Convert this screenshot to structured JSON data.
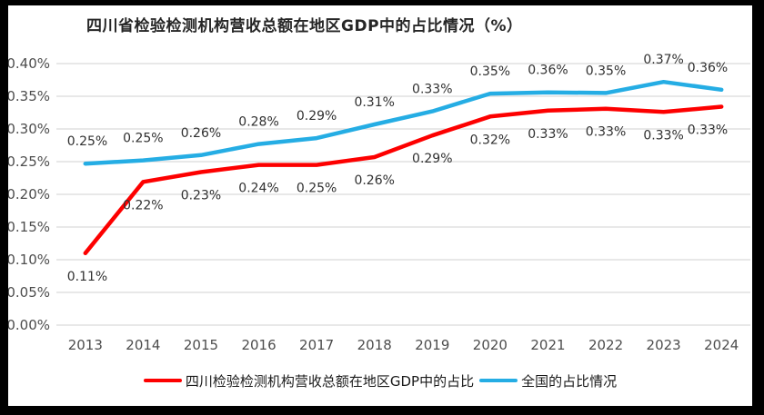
{
  "window": {
    "frame_color": "#000000",
    "canvas_background": "#ffffff"
  },
  "chart_data": {
    "type": "line",
    "title": "四川省检验检测机构营收总额在地区GDP中的占比情况（%）",
    "categories": [
      "2013",
      "2014",
      "2015",
      "2016",
      "2017",
      "2018",
      "2019",
      "2020",
      "2021",
      "2022",
      "2023",
      "2024"
    ],
    "series": [
      {
        "name": "四川检验检测机构营收总额在地区GDP中的占比",
        "color": "#fd0000",
        "values": [
          0.11,
          0.22,
          0.23,
          0.24,
          0.25,
          0.26,
          0.29,
          0.32,
          0.33,
          0.33,
          0.33,
          0.33
        ],
        "labels": [
          "0.11%",
          "0.22%",
          "0.23%",
          "0.24%",
          "0.25%",
          "0.26%",
          "0.29%",
          "0.32%",
          "0.33%",
          "0.33%",
          "0.33%",
          "0.33%"
        ],
        "plot_values": [
          0.11,
          0.219,
          0.234,
          0.245,
          0.245,
          0.257,
          0.29,
          0.319,
          0.328,
          0.331,
          0.326,
          0.334
        ],
        "label_position": "below"
      },
      {
        "name": "全国的占比情况",
        "color": "#25ade4",
        "values": [
          0.25,
          0.25,
          0.26,
          0.28,
          0.29,
          0.31,
          0.33,
          0.35,
          0.36,
          0.35,
          0.37,
          0.36
        ],
        "labels": [
          "0.25%",
          "0.25%",
          "0.26%",
          "0.28%",
          "0.29%",
          "0.31%",
          "0.33%",
          "0.35%",
          "0.36%",
          "0.35%",
          "0.37%",
          "0.36%"
        ],
        "plot_values": [
          0.247,
          0.252,
          0.26,
          0.277,
          0.286,
          0.307,
          0.327,
          0.354,
          0.356,
          0.355,
          0.372,
          0.36
        ],
        "label_position": "above"
      }
    ],
    "y_axis": {
      "min": 0,
      "max": 0.4,
      "step": 0.05,
      "ticks": [
        "0.00%",
        "0.05%",
        "0.10%",
        "0.15%",
        "0.20%",
        "0.25%",
        "0.30%",
        "0.35%",
        "0.40%"
      ]
    },
    "grid": true,
    "legend_position": "bottom",
    "styles": {
      "gridline_color": "#d9d9d9",
      "tick_label_color": "#4d4d4d",
      "data_label_color": "#303030",
      "line_width": 4.5
    }
  }
}
